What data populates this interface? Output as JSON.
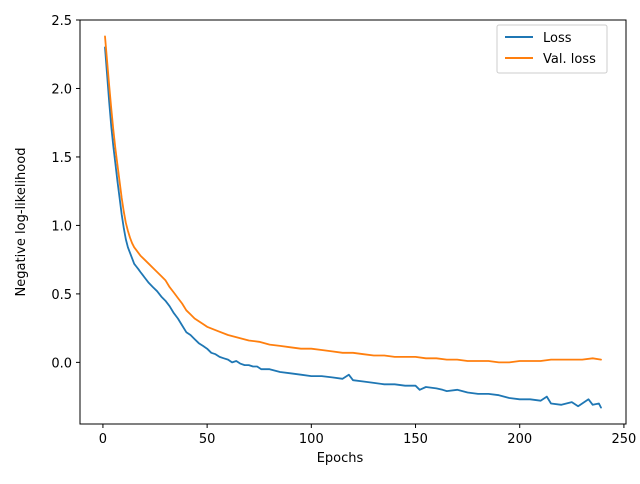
{
  "chart_data": {
    "type": "line",
    "xlabel": "Epochs",
    "ylabel": "Negative log-likelihood",
    "xlim": [
      -11,
      251
    ],
    "ylim": [
      -0.45,
      2.5
    ],
    "xticks": [
      0,
      50,
      100,
      150,
      200,
      250
    ],
    "yticks": [
      0.0,
      0.5,
      1.0,
      1.5,
      2.0,
      2.5
    ],
    "xtick_labels": [
      "0",
      "50",
      "100",
      "150",
      "200",
      "250"
    ],
    "ytick_labels": [
      "0.0",
      "0.5",
      "1.0",
      "1.5",
      "2.0",
      "2.5"
    ],
    "grid": false,
    "legend_position": "top-right",
    "series": [
      {
        "name": "Loss",
        "color": "#1f77b4",
        "x": [
          1,
          2,
          3,
          4,
          5,
          6,
          7,
          8,
          9,
          10,
          11,
          12,
          13,
          14,
          15,
          16,
          17,
          18,
          19,
          20,
          22,
          24,
          26,
          28,
          30,
          32,
          34,
          36,
          38,
          40,
          42,
          44,
          46,
          48,
          50,
          52,
          54,
          56,
          58,
          60,
          62,
          64,
          66,
          68,
          70,
          72,
          74,
          76,
          78,
          80,
          85,
          90,
          95,
          100,
          105,
          110,
          115,
          118,
          120,
          125,
          130,
          135,
          140,
          145,
          150,
          152,
          155,
          160,
          163,
          165,
          170,
          175,
          180,
          185,
          190,
          195,
          200,
          205,
          210,
          213,
          215,
          220,
          225,
          228,
          230,
          233,
          235,
          238,
          239
        ],
        "y": [
          2.3,
          2.1,
          1.9,
          1.72,
          1.58,
          1.45,
          1.32,
          1.2,
          1.08,
          0.98,
          0.9,
          0.84,
          0.8,
          0.76,
          0.72,
          0.7,
          0.68,
          0.66,
          0.64,
          0.62,
          0.58,
          0.55,
          0.52,
          0.48,
          0.45,
          0.41,
          0.36,
          0.32,
          0.27,
          0.22,
          0.2,
          0.17,
          0.14,
          0.12,
          0.1,
          0.07,
          0.06,
          0.04,
          0.03,
          0.02,
          0.0,
          0.01,
          -0.01,
          -0.02,
          -0.02,
          -0.03,
          -0.03,
          -0.05,
          -0.05,
          -0.05,
          -0.07,
          -0.08,
          -0.09,
          -0.1,
          -0.1,
          -0.11,
          -0.12,
          -0.09,
          -0.13,
          -0.14,
          -0.15,
          -0.16,
          -0.16,
          -0.17,
          -0.17,
          -0.2,
          -0.18,
          -0.19,
          -0.2,
          -0.21,
          -0.2,
          -0.22,
          -0.23,
          -0.23,
          -0.24,
          -0.26,
          -0.27,
          -0.27,
          -0.28,
          -0.25,
          -0.3,
          -0.31,
          -0.29,
          -0.32,
          -0.3,
          -0.27,
          -0.31,
          -0.3,
          -0.33
        ]
      },
      {
        "name": "Val. loss",
        "color": "#ff7f0e",
        "x": [
          1,
          2,
          3,
          4,
          5,
          6,
          7,
          8,
          9,
          10,
          11,
          12,
          13,
          14,
          15,
          16,
          18,
          20,
          22,
          24,
          26,
          28,
          30,
          32,
          34,
          36,
          38,
          40,
          42,
          44,
          46,
          48,
          50,
          55,
          60,
          65,
          70,
          75,
          80,
          85,
          90,
          95,
          100,
          105,
          110,
          115,
          120,
          125,
          130,
          135,
          140,
          145,
          150,
          155,
          160,
          165,
          170,
          175,
          180,
          185,
          190,
          195,
          200,
          205,
          210,
          215,
          220,
          225,
          230,
          235,
          239
        ],
        "y": [
          2.38,
          2.2,
          2.02,
          1.85,
          1.7,
          1.56,
          1.44,
          1.32,
          1.2,
          1.1,
          1.02,
          0.96,
          0.91,
          0.87,
          0.84,
          0.82,
          0.78,
          0.75,
          0.72,
          0.69,
          0.66,
          0.63,
          0.6,
          0.55,
          0.51,
          0.47,
          0.43,
          0.38,
          0.35,
          0.32,
          0.3,
          0.28,
          0.26,
          0.23,
          0.2,
          0.18,
          0.16,
          0.15,
          0.13,
          0.12,
          0.11,
          0.1,
          0.1,
          0.09,
          0.08,
          0.07,
          0.07,
          0.06,
          0.05,
          0.05,
          0.04,
          0.04,
          0.04,
          0.03,
          0.03,
          0.02,
          0.02,
          0.01,
          0.01,
          0.01,
          0.0,
          0.0,
          0.01,
          0.01,
          0.01,
          0.02,
          0.02,
          0.02,
          0.02,
          0.03,
          0.02
        ]
      }
    ]
  }
}
